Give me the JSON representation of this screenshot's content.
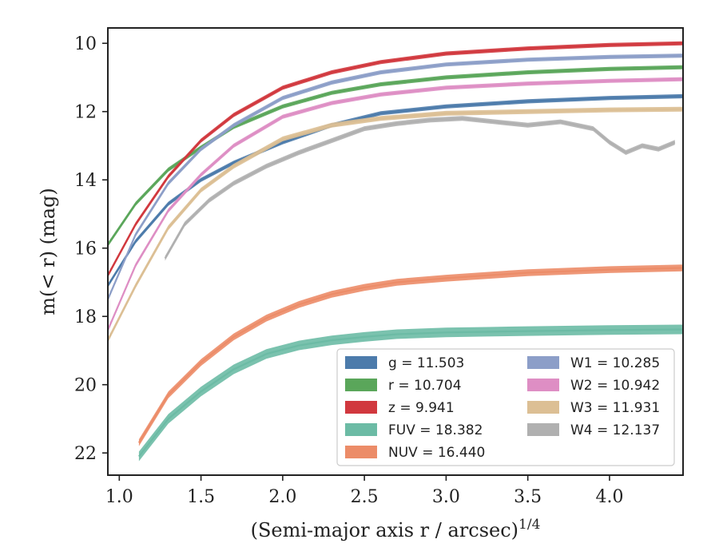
{
  "chart_data": {
    "type": "line",
    "title": "",
    "xlabel": "(Semi-major axis r / arcsec)",
    "xlabel_sup": "1/4",
    "ylabel": "m(< r) (mag)",
    "xlim": [
      0.93,
      4.45
    ],
    "ylim": [
      22.65,
      9.55
    ],
    "y_inverted": true,
    "x_ticks": [
      "1.0",
      "1.5",
      "2.0",
      "2.5",
      "3.0",
      "3.5",
      "4.0"
    ],
    "y_ticks": [
      "10",
      "12",
      "14",
      "16",
      "18",
      "20",
      "22"
    ],
    "grid": false,
    "legend_position": "lower-right",
    "series": [
      {
        "name": "g = 11.503",
        "color": "#4c7bab",
        "band": 0.06,
        "x": [
          0.93,
          1.1,
          1.3,
          1.5,
          1.7,
          2.0,
          2.3,
          2.6,
          3.0,
          3.5,
          4.0,
          4.45
        ],
        "y": [
          17.1,
          15.8,
          14.7,
          14.0,
          13.5,
          12.9,
          12.4,
          12.05,
          11.85,
          11.7,
          11.6,
          11.55
        ]
      },
      {
        "name": "r = 10.704",
        "color": "#5aa65a",
        "band": 0.06,
        "x": [
          0.93,
          1.1,
          1.3,
          1.5,
          1.7,
          2.0,
          2.3,
          2.6,
          3.0,
          3.5,
          4.0,
          4.45
        ],
        "y": [
          15.9,
          14.7,
          13.7,
          13.05,
          12.45,
          11.85,
          11.45,
          11.2,
          11.0,
          10.85,
          10.75,
          10.7
        ]
      },
      {
        "name": "z = 9.941",
        "color": "#d1383e",
        "band": 0.06,
        "x": [
          0.93,
          1.1,
          1.3,
          1.5,
          1.7,
          2.0,
          2.3,
          2.6,
          3.0,
          3.5,
          4.0,
          4.45
        ],
        "y": [
          16.8,
          15.3,
          13.9,
          12.85,
          12.1,
          11.3,
          10.85,
          10.55,
          10.3,
          10.15,
          10.05,
          10.0
        ]
      },
      {
        "name": "FUV = 18.382",
        "color": "#6cbba5",
        "band": 0.14,
        "x": [
          1.12,
          1.3,
          1.5,
          1.7,
          1.9,
          2.1,
          2.3,
          2.5,
          2.7,
          3.0,
          3.25,
          3.5,
          4.0,
          4.45
        ],
        "y": [
          22.1,
          21.0,
          20.2,
          19.55,
          19.1,
          18.85,
          18.7,
          18.6,
          18.52,
          18.47,
          18.45,
          18.43,
          18.4,
          18.38
        ]
      },
      {
        "name": "NUV = 16.440",
        "color": "#ec8c68",
        "band": 0.1,
        "x": [
          1.12,
          1.3,
          1.5,
          1.7,
          1.9,
          2.1,
          2.3,
          2.5,
          2.7,
          3.0,
          3.25,
          3.5,
          4.0,
          4.45
        ],
        "y": [
          21.7,
          20.3,
          19.35,
          18.6,
          18.05,
          17.65,
          17.35,
          17.15,
          17.0,
          16.88,
          16.8,
          16.72,
          16.63,
          16.58
        ]
      },
      {
        "name": "W1 = 10.285",
        "color": "#8c9ec8",
        "band": 0.06,
        "x": [
          0.93,
          1.1,
          1.3,
          1.5,
          1.7,
          2.0,
          2.3,
          2.6,
          3.0,
          3.5,
          4.0,
          4.45
        ],
        "y": [
          17.5,
          15.6,
          14.1,
          13.1,
          12.4,
          11.6,
          11.15,
          10.85,
          10.62,
          10.48,
          10.4,
          10.36
        ]
      },
      {
        "name": "W2 = 10.942",
        "color": "#de8ec4",
        "band": 0.06,
        "x": [
          0.93,
          1.1,
          1.3,
          1.5,
          1.7,
          2.0,
          2.3,
          2.6,
          3.0,
          3.5,
          4.0,
          4.45
        ],
        "y": [
          18.4,
          16.5,
          14.9,
          13.85,
          13.0,
          12.15,
          11.75,
          11.5,
          11.3,
          11.18,
          11.1,
          11.05
        ]
      },
      {
        "name": "W3 = 11.931",
        "color": "#dcbf94",
        "band": 0.07,
        "x": [
          0.93,
          1.1,
          1.3,
          1.5,
          1.7,
          2.0,
          2.3,
          2.6,
          3.0,
          3.5,
          4.0,
          4.45
        ],
        "y": [
          18.7,
          17.1,
          15.4,
          14.3,
          13.6,
          12.8,
          12.4,
          12.2,
          12.05,
          12.0,
          11.95,
          11.93
        ]
      },
      {
        "name": "W4 = 12.137",
        "color": "#b0b0b0",
        "band": 0.07,
        "x": [
          1.28,
          1.4,
          1.55,
          1.7,
          1.9,
          2.1,
          2.3,
          2.5,
          2.7,
          2.9,
          3.1,
          3.3,
          3.5,
          3.7,
          3.9,
          4.0,
          4.1,
          4.2,
          4.3,
          4.4
        ],
        "y": [
          16.3,
          15.3,
          14.6,
          14.1,
          13.6,
          13.2,
          12.85,
          12.5,
          12.35,
          12.25,
          12.2,
          12.3,
          12.4,
          12.3,
          12.5,
          12.9,
          13.2,
          13.0,
          13.1,
          12.9
        ]
      }
    ]
  }
}
